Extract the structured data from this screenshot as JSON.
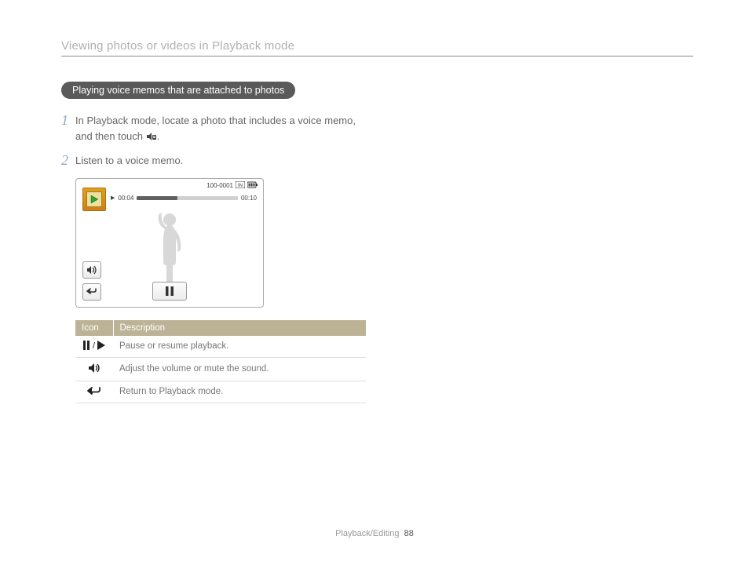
{
  "chapter_title": "Viewing photos or videos in Playback mode",
  "section_pill": "Playing voice memos that are attached to photos",
  "steps": [
    {
      "num": "1",
      "text_before": "In Playback mode, locate a photo that includes a voice memo, and then touch ",
      "text_after": ".",
      "has_icon": true
    },
    {
      "num": "2",
      "text_before": "Listen to a voice memo.",
      "text_after": "",
      "has_icon": false
    }
  ],
  "screen": {
    "status_text": "100-0001",
    "elapsed": "00:04",
    "total": "00:10",
    "progress_pct": 40,
    "colors": {
      "border": "#aaaaaa",
      "progress_bg": "#d0d0d0",
      "progress_fill": "#606060",
      "thumb_bg_top": "#e0a020",
      "thumb_bg_bottom": "#d08010"
    }
  },
  "table": {
    "header_bg": "#bcb295",
    "header_icon": "Icon",
    "header_desc": "Description",
    "rows": [
      {
        "icon": "pause-play",
        "desc": "Pause or resume playback."
      },
      {
        "icon": "speaker",
        "desc": "Adjust the volume or mute the sound."
      },
      {
        "icon": "return",
        "desc": "Return to Playback mode."
      }
    ]
  },
  "footer": {
    "section": "Playback/Editing",
    "page": "88"
  }
}
